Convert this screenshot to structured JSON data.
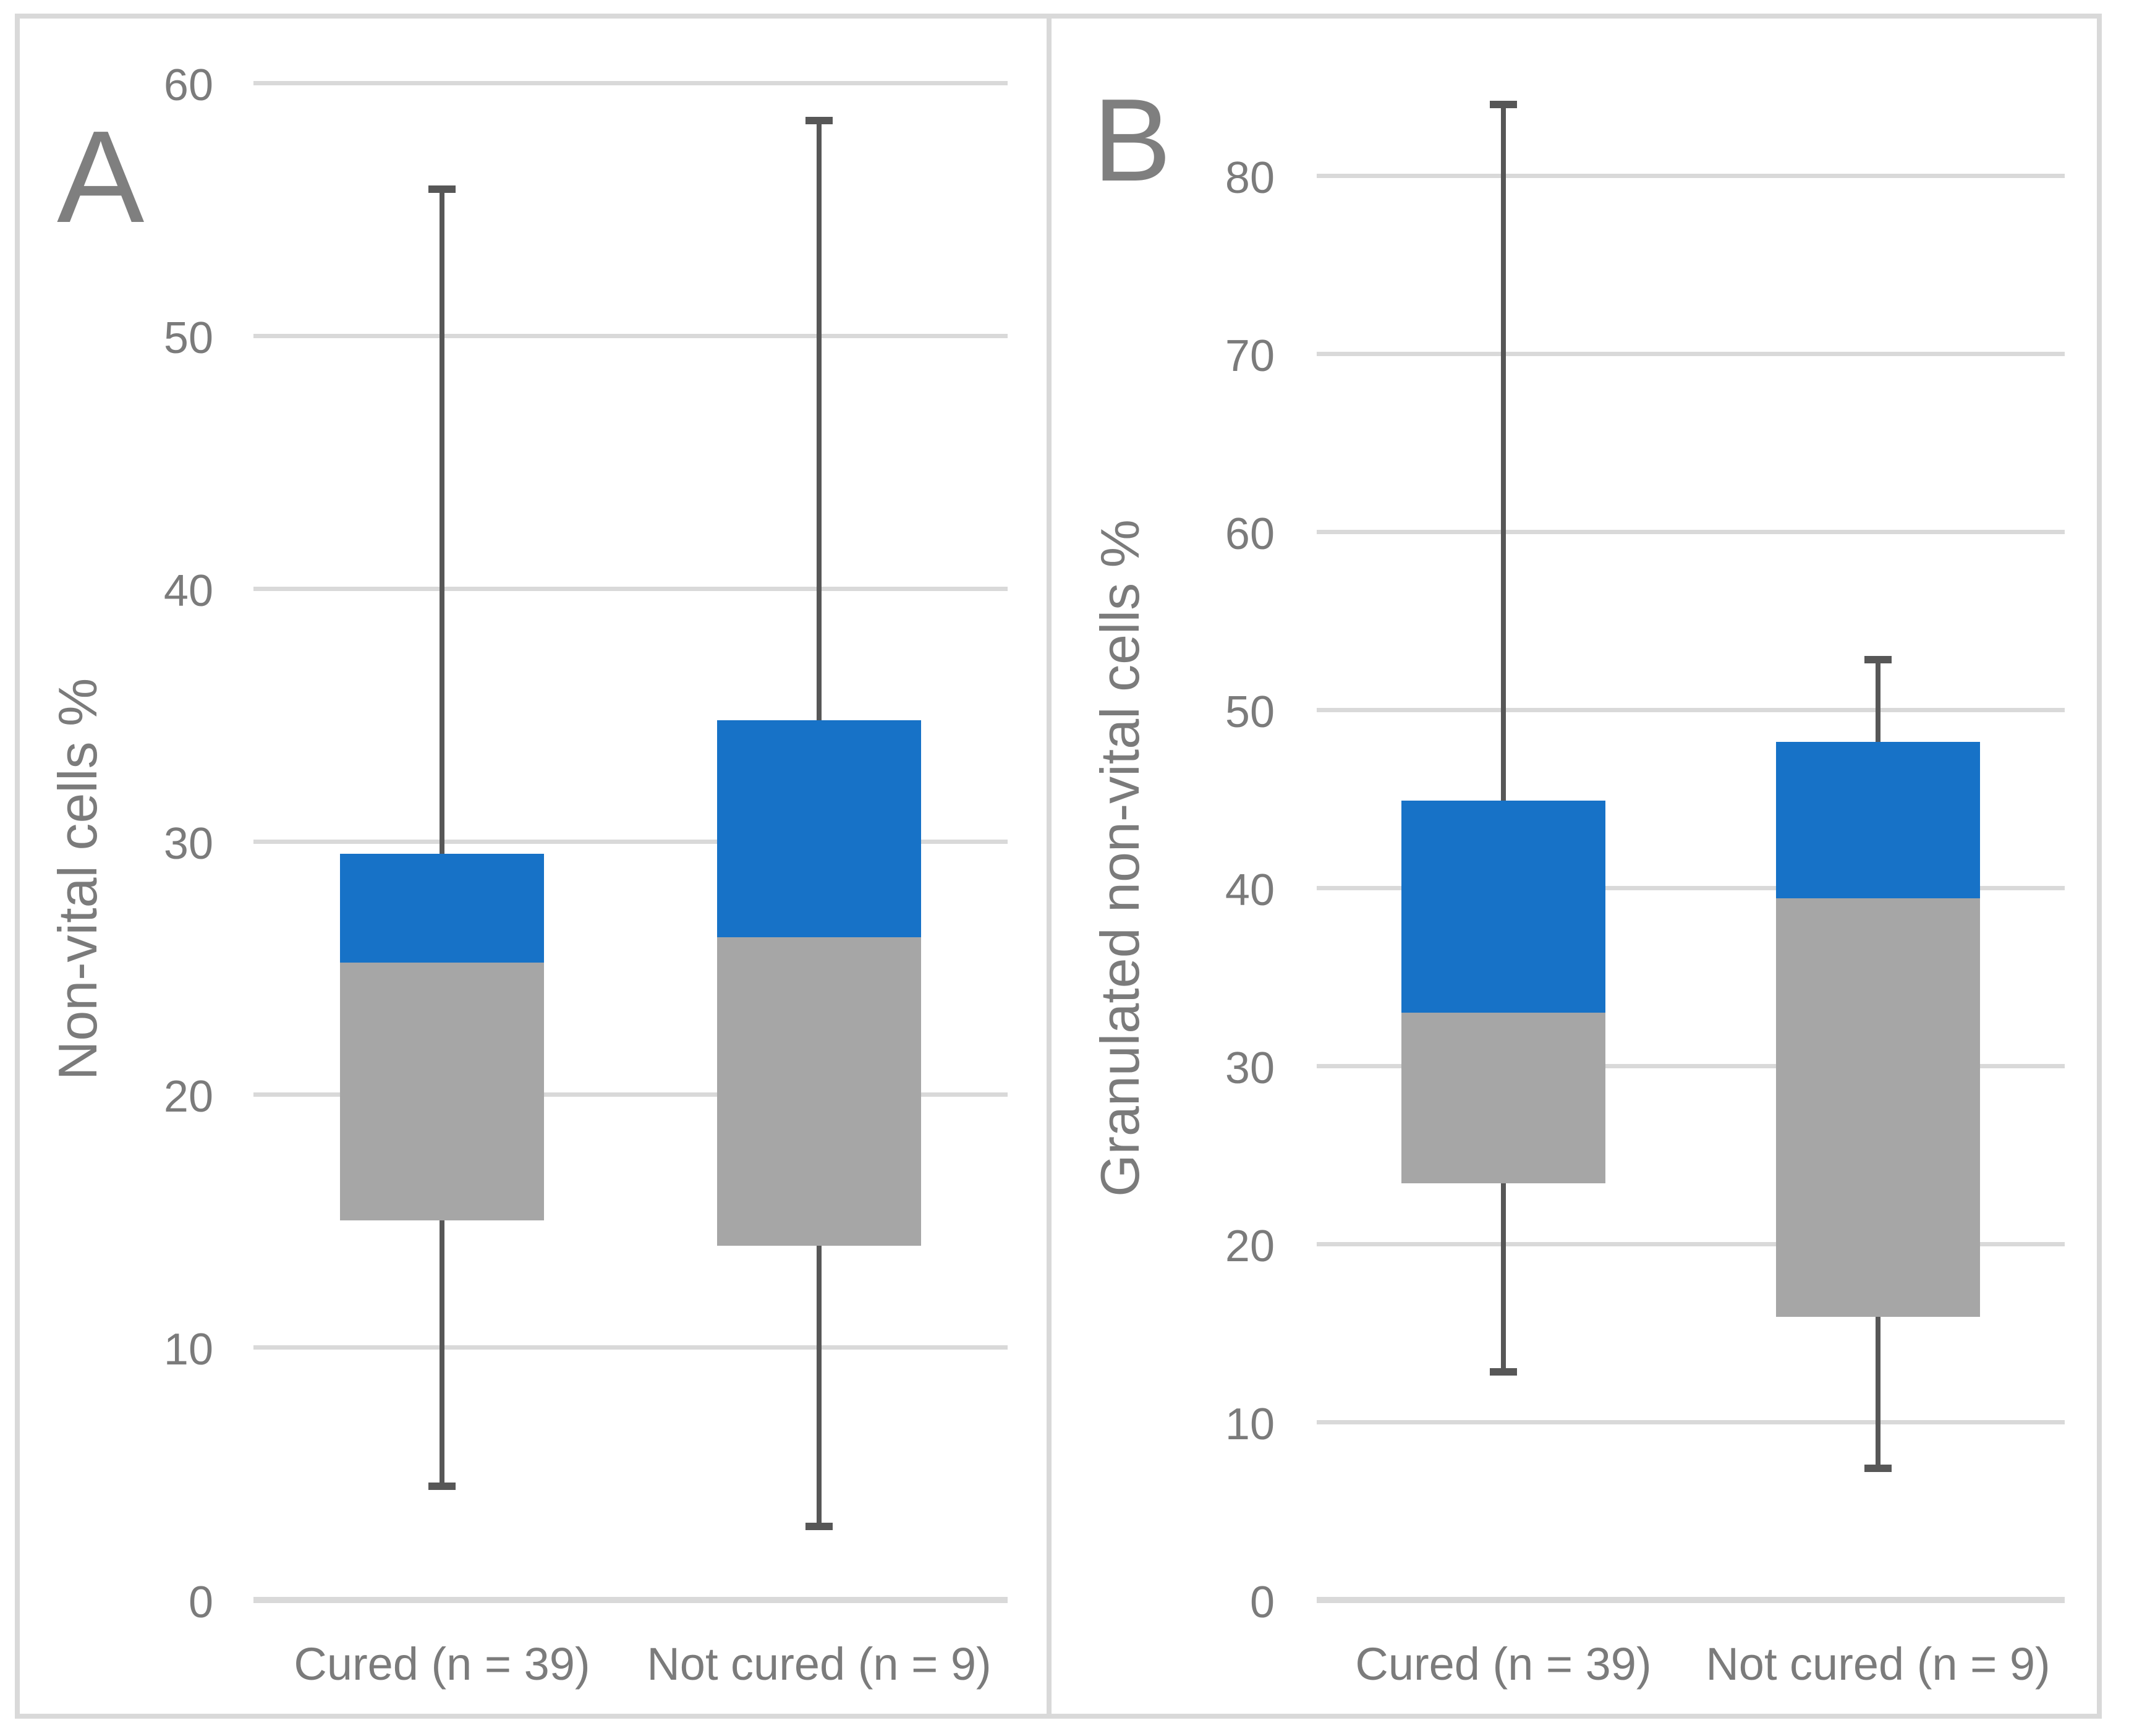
{
  "figure": {
    "background": "#ffffff",
    "border_color": "#d9d9d9",
    "panels": [
      {
        "letter": "A",
        "y_axis_title": "Non-vital cells %"
      },
      {
        "letter": "B",
        "y_axis_title": "Granulated non-vital cells %"
      }
    ]
  },
  "chart_data": [
    {
      "type": "boxplot",
      "panel_label": "A",
      "ylabel": "Non-vital cells %",
      "categories": [
        "Cured (n = 39)",
        "Not cured (n = 9)"
      ],
      "ylim": [
        0,
        63
      ],
      "yticks": [
        0,
        10,
        20,
        30,
        40,
        50,
        60
      ],
      "grid": true,
      "legend": "none",
      "series": [
        {
          "name": "Cured (n = 39)",
          "min": 4.5,
          "q1": 15,
          "median": 25.2,
          "q3": 29.5,
          "max": 55.8
        },
        {
          "name": "Not cured (n = 9)",
          "min": 2.9,
          "q1": 14,
          "median": 26.2,
          "q3": 34.8,
          "max": 58.5
        }
      ],
      "colors": {
        "upper_box": "#1772c7",
        "lower_box": "#a6a6a6",
        "whisker": "#575757",
        "gridline": "#d9d9d9",
        "text": "#7b7b7b"
      }
    },
    {
      "type": "boxplot",
      "panel_label": "B",
      "ylabel": "Granulated non-vital cells %",
      "categories": [
        "Cured (n = 39)",
        "Not cured (n = 9)"
      ],
      "ylim": [
        0,
        89
      ],
      "yticks": [
        0,
        10,
        20,
        30,
        40,
        50,
        60,
        70,
        80
      ],
      "grid": true,
      "legend": "none",
      "series": [
        {
          "name": "Cured (n = 39)",
          "min": 12.8,
          "q1": 23.4,
          "median": 33,
          "q3": 44.9,
          "max": 84
        },
        {
          "name": "Not cured (n = 9)",
          "min": 7.4,
          "q1": 15.9,
          "median": 39.4,
          "q3": 48.2,
          "max": 52.8
        }
      ],
      "colors": {
        "upper_box": "#1772c7",
        "lower_box": "#a6a6a6",
        "whisker": "#575757",
        "gridline": "#d9d9d9",
        "text": "#7b7b7b"
      }
    }
  ]
}
